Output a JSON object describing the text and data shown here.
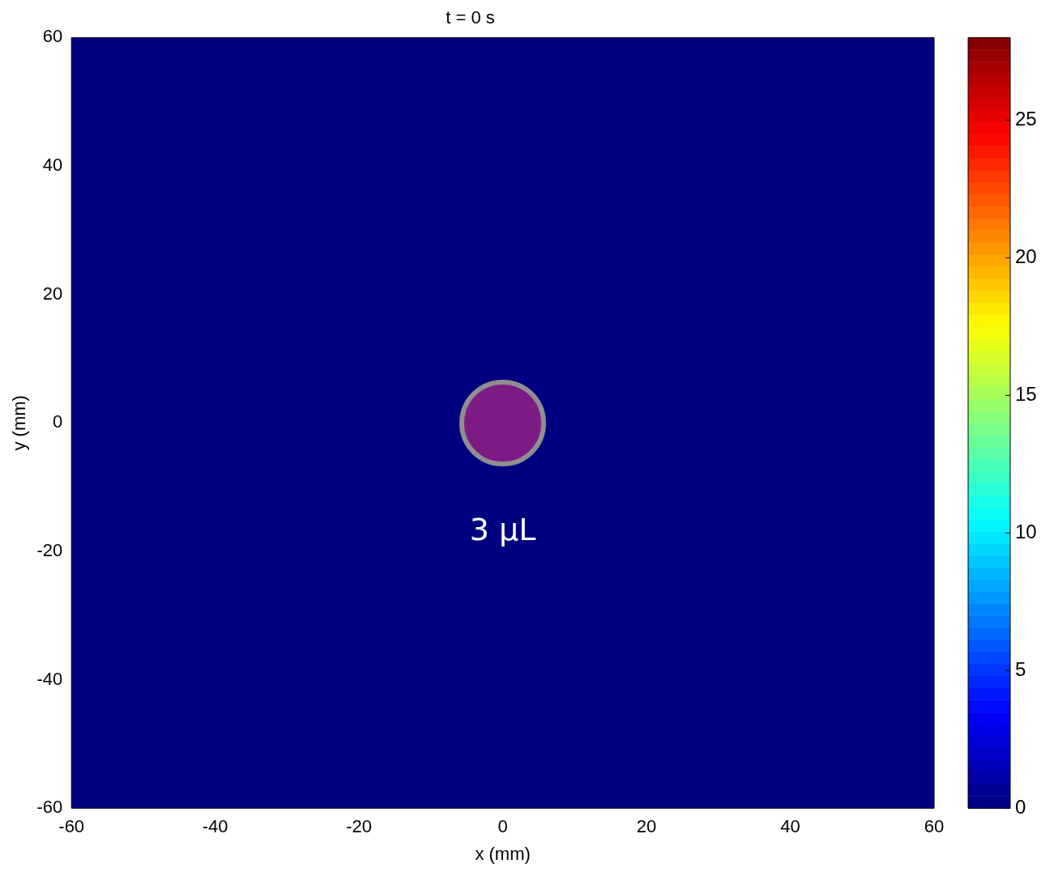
{
  "chart_data": {
    "type": "heatmap",
    "title": "t = 0 s",
    "xlabel": "x (mm)",
    "ylabel": "y (mm)",
    "xlim": [
      -60,
      60
    ],
    "ylim": [
      -60,
      60
    ],
    "xticks": [
      -60,
      -40,
      -20,
      0,
      20,
      40,
      60
    ],
    "yticks": [
      -60,
      -40,
      -20,
      0,
      20,
      40,
      60
    ],
    "cells": [
      [
        0
      ]
    ],
    "clim": [
      0,
      28
    ],
    "cticks": [
      0,
      5,
      10,
      15,
      20,
      25
    ],
    "annotations": [
      "3 μL"
    ]
  }
}
